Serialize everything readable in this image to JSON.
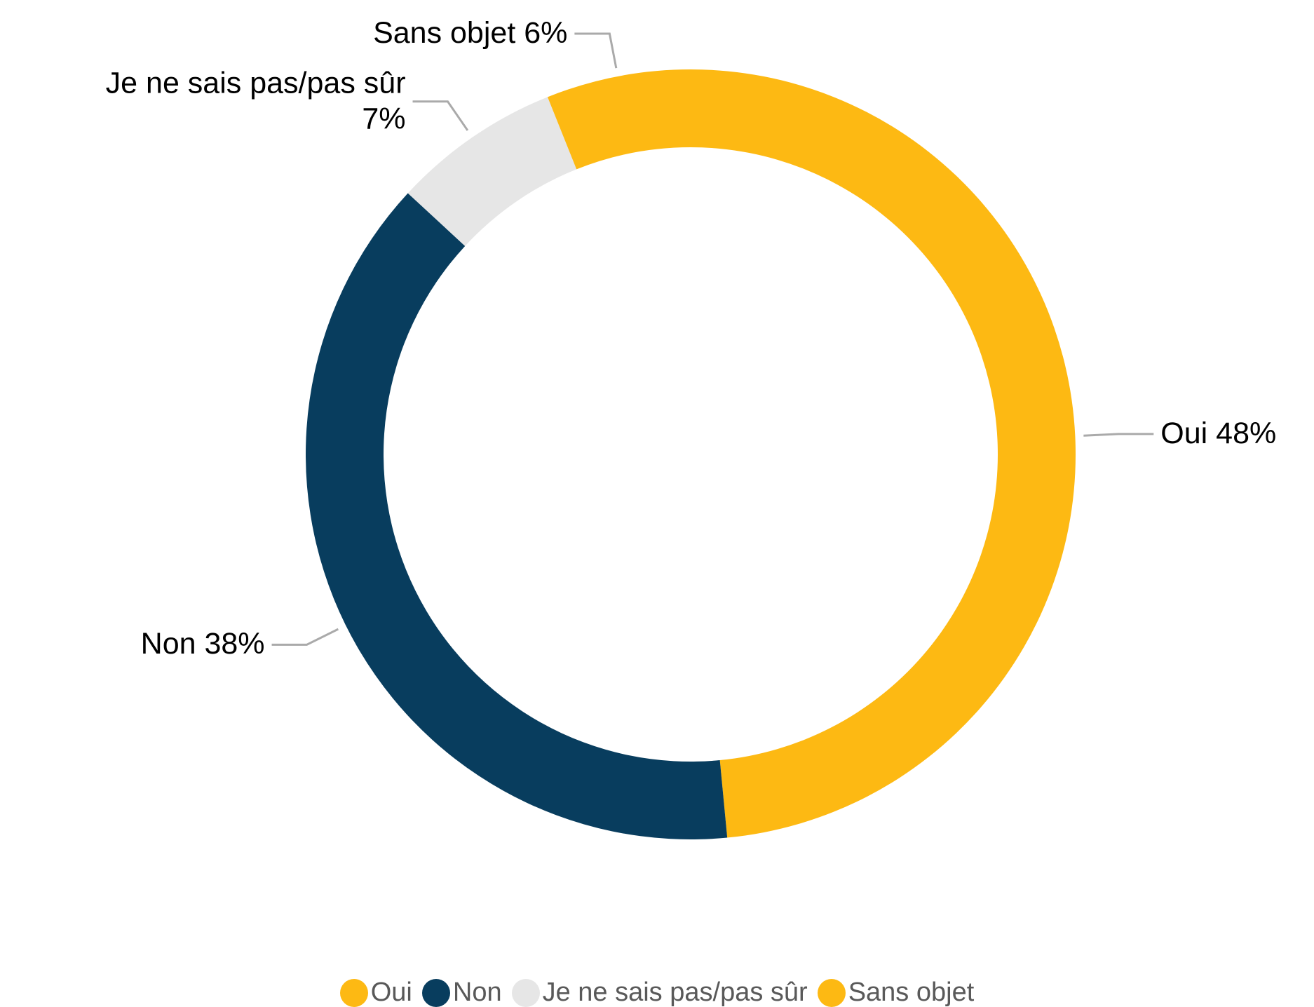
{
  "chart_data": {
    "type": "donut",
    "categories": [
      "Oui",
      "Non",
      "Je ne sais pas/pas sûr",
      "Sans objet"
    ],
    "values": [
      48,
      38,
      7,
      6
    ],
    "value_labels": [
      "Oui 48%",
      "Non 38%",
      "Je ne sais pas/pas sûr 7%",
      "Sans objet 6%"
    ],
    "colors": [
      "#FDB913",
      "#083D5E",
      "#E6E6E6",
      "#FDB913"
    ]
  }
}
